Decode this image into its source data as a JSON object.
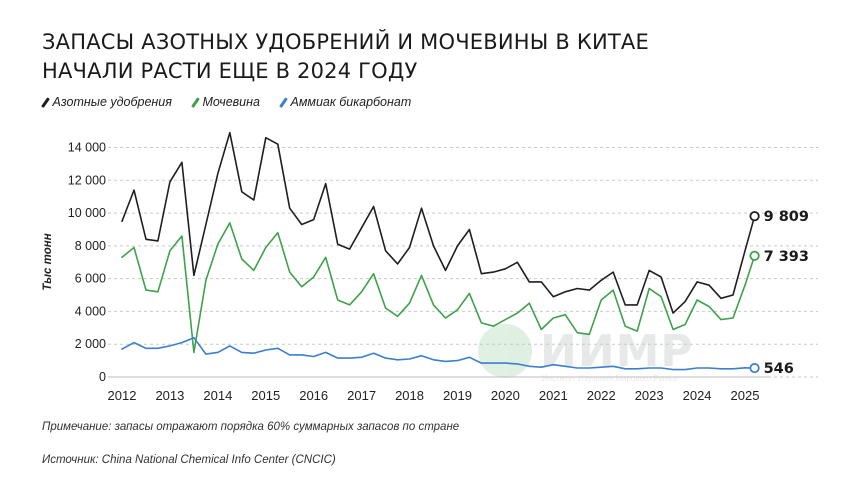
{
  "header": {
    "title_line1": "ЗАПАСЫ АЗОТНЫХ УДОБРЕНИЙ И МОЧЕВИНЫ В КИТАЕ",
    "title_line2": "НАЧАЛИ РАСТИ ЕЩЕ В 2024 ГОДУ"
  },
  "footer": {
    "note": "Примечание: запасы отражают порядка 60% суммарных запасов по стране",
    "source": "Источник: China National Chemical Info Center (CNCIC)"
  },
  "watermark": {
    "name": "ИИМР",
    "subtitle": "Институт Изучения Мирового Рынка"
  },
  "colors": {
    "nitrogen": "#1f1f1f",
    "urea": "#3fa24a",
    "ammonium": "#3a7fd0",
    "grid": "#c9c9c9",
    "text": "#1a1a1a"
  },
  "chart_data": {
    "type": "line",
    "title": "ЗАПАСЫ АЗОТНЫХ УДОБРЕНИЙ И МОЧЕВИНЫ В КИТАЕ НАЧАЛИ РАСТИ ЕЩЕ В 2024 ГОДУ",
    "xlabel": "",
    "ylabel": "Тыс тонн",
    "ylim": [
      0,
      15000
    ],
    "xlim": [
      2012,
      2025.55
    ],
    "grid": true,
    "legend_position": "top-left",
    "y_ticks": [
      0,
      2000,
      4000,
      6000,
      8000,
      10000,
      12000,
      14000
    ],
    "y_tick_labels": [
      "0",
      "2 000",
      "4 000",
      "6 000",
      "8 000",
      "10 000",
      "12 000",
      "14 000"
    ],
    "x_ticks": [
      2012,
      2013,
      2014,
      2015,
      2016,
      2017,
      2018,
      2019,
      2020,
      2021,
      2022,
      2023,
      2024,
      2025
    ],
    "x_tick_labels": [
      "2012",
      "2013",
      "2014",
      "2015",
      "2016",
      "2017",
      "2018",
      "2019",
      "2020",
      "2021",
      "2022",
      "2023",
      "2024",
      "2025"
    ],
    "series": [
      {
        "name": "Азотные удобрения",
        "color": "#1f1f1f",
        "end_label": "9 809",
        "points": [
          [
            2012.0,
            9500
          ],
          [
            2012.25,
            11400
          ],
          [
            2012.5,
            8400
          ],
          [
            2012.75,
            8300
          ],
          [
            2013.0,
            11900
          ],
          [
            2013.25,
            13100
          ],
          [
            2013.5,
            6200
          ],
          [
            2013.75,
            9300
          ],
          [
            2014.0,
            12400
          ],
          [
            2014.25,
            14900
          ],
          [
            2014.5,
            11300
          ],
          [
            2014.75,
            10800
          ],
          [
            2015.0,
            14600
          ],
          [
            2015.25,
            14200
          ],
          [
            2015.5,
            10300
          ],
          [
            2015.75,
            9300
          ],
          [
            2016.0,
            9600
          ],
          [
            2016.25,
            11800
          ],
          [
            2016.5,
            8100
          ],
          [
            2016.75,
            7800
          ],
          [
            2017.0,
            9100
          ],
          [
            2017.25,
            10400
          ],
          [
            2017.5,
            7700
          ],
          [
            2017.75,
            6900
          ],
          [
            2018.0,
            7900
          ],
          [
            2018.25,
            10300
          ],
          [
            2018.5,
            8000
          ],
          [
            2018.75,
            6500
          ],
          [
            2019.0,
            8000
          ],
          [
            2019.25,
            9000
          ],
          [
            2019.5,
            6300
          ],
          [
            2019.75,
            6400
          ],
          [
            2020.0,
            6600
          ],
          [
            2020.25,
            7000
          ],
          [
            2020.5,
            5800
          ],
          [
            2020.75,
            5800
          ],
          [
            2021.0,
            4900
          ],
          [
            2021.25,
            5200
          ],
          [
            2021.5,
            5400
          ],
          [
            2021.75,
            5300
          ],
          [
            2022.0,
            5900
          ],
          [
            2022.25,
            6400
          ],
          [
            2022.5,
            4400
          ],
          [
            2022.75,
            4400
          ],
          [
            2023.0,
            6500
          ],
          [
            2023.25,
            6100
          ],
          [
            2023.5,
            3900
          ],
          [
            2023.75,
            4600
          ],
          [
            2024.0,
            5800
          ],
          [
            2024.25,
            5600
          ],
          [
            2024.5,
            4800
          ],
          [
            2024.75,
            5000
          ],
          [
            2025.0,
            7700
          ],
          [
            2025.2,
            9809
          ]
        ]
      },
      {
        "name": "Мочевина",
        "color": "#3fa24a",
        "end_label": "7 393",
        "points": [
          [
            2012.0,
            7300
          ],
          [
            2012.25,
            7900
          ],
          [
            2012.5,
            5300
          ],
          [
            2012.75,
            5200
          ],
          [
            2013.0,
            7700
          ],
          [
            2013.25,
            8600
          ],
          [
            2013.5,
            1500
          ],
          [
            2013.75,
            5900
          ],
          [
            2014.0,
            8100
          ],
          [
            2014.25,
            9400
          ],
          [
            2014.5,
            7200
          ],
          [
            2014.75,
            6500
          ],
          [
            2015.0,
            7900
          ],
          [
            2015.25,
            8800
          ],
          [
            2015.5,
            6400
          ],
          [
            2015.75,
            5500
          ],
          [
            2016.0,
            6100
          ],
          [
            2016.25,
            7300
          ],
          [
            2016.5,
            4700
          ],
          [
            2016.75,
            4400
          ],
          [
            2017.0,
            5200
          ],
          [
            2017.25,
            6300
          ],
          [
            2017.5,
            4200
          ],
          [
            2017.75,
            3700
          ],
          [
            2018.0,
            4500
          ],
          [
            2018.25,
            6200
          ],
          [
            2018.5,
            4400
          ],
          [
            2018.75,
            3600
          ],
          [
            2019.0,
            4100
          ],
          [
            2019.25,
            5100
          ],
          [
            2019.5,
            3300
          ],
          [
            2019.75,
            3100
          ],
          [
            2020.0,
            3500
          ],
          [
            2020.25,
            3900
          ],
          [
            2020.5,
            4500
          ],
          [
            2020.75,
            2900
          ],
          [
            2021.0,
            3600
          ],
          [
            2021.25,
            3800
          ],
          [
            2021.5,
            2700
          ],
          [
            2021.75,
            2600
          ],
          [
            2022.0,
            4700
          ],
          [
            2022.25,
            5300
          ],
          [
            2022.5,
            3100
          ],
          [
            2022.75,
            2800
          ],
          [
            2023.0,
            5400
          ],
          [
            2023.25,
            4900
          ],
          [
            2023.5,
            2900
          ],
          [
            2023.75,
            3200
          ],
          [
            2024.0,
            4700
          ],
          [
            2024.25,
            4300
          ],
          [
            2024.5,
            3500
          ],
          [
            2024.75,
            3600
          ],
          [
            2025.0,
            5600
          ],
          [
            2025.2,
            7393
          ]
        ]
      },
      {
        "name": "Аммиак бикарбонат",
        "color": "#3a7fd0",
        "end_label": "546",
        "points": [
          [
            2012.0,
            1700
          ],
          [
            2012.25,
            2100
          ],
          [
            2012.5,
            1750
          ],
          [
            2012.75,
            1750
          ],
          [
            2013.0,
            1900
          ],
          [
            2013.25,
            2100
          ],
          [
            2013.5,
            2400
          ],
          [
            2013.75,
            1400
          ],
          [
            2014.0,
            1500
          ],
          [
            2014.25,
            1900
          ],
          [
            2014.5,
            1500
          ],
          [
            2014.75,
            1450
          ],
          [
            2015.0,
            1650
          ],
          [
            2015.25,
            1750
          ],
          [
            2015.5,
            1350
          ],
          [
            2015.75,
            1350
          ],
          [
            2016.0,
            1250
          ],
          [
            2016.25,
            1500
          ],
          [
            2016.5,
            1150
          ],
          [
            2016.75,
            1150
          ],
          [
            2017.0,
            1200
          ],
          [
            2017.25,
            1450
          ],
          [
            2017.5,
            1150
          ],
          [
            2017.75,
            1050
          ],
          [
            2018.0,
            1100
          ],
          [
            2018.25,
            1300
          ],
          [
            2018.5,
            1050
          ],
          [
            2018.75,
            950
          ],
          [
            2019.0,
            1000
          ],
          [
            2019.25,
            1200
          ],
          [
            2019.5,
            850
          ],
          [
            2019.75,
            850
          ],
          [
            2020.0,
            850
          ],
          [
            2020.25,
            800
          ],
          [
            2020.5,
            650
          ],
          [
            2020.75,
            600
          ],
          [
            2021.0,
            750
          ],
          [
            2021.25,
            650
          ],
          [
            2021.5,
            550
          ],
          [
            2021.75,
            550
          ],
          [
            2022.0,
            600
          ],
          [
            2022.25,
            650
          ],
          [
            2022.5,
            500
          ],
          [
            2022.75,
            500
          ],
          [
            2023.0,
            550
          ],
          [
            2023.25,
            550
          ],
          [
            2023.5,
            450
          ],
          [
            2023.75,
            450
          ],
          [
            2024.0,
            550
          ],
          [
            2024.25,
            550
          ],
          [
            2024.5,
            500
          ],
          [
            2024.75,
            500
          ],
          [
            2025.0,
            560
          ],
          [
            2025.2,
            546
          ]
        ]
      }
    ]
  }
}
